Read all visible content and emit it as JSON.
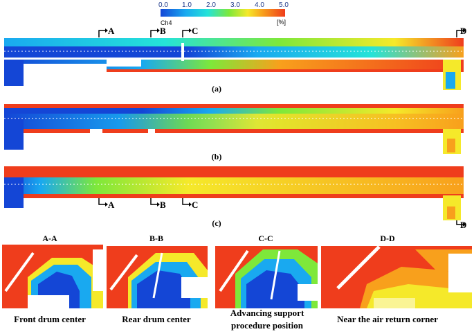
{
  "colorbar": {
    "ticks": [
      "0.0",
      "1.0",
      "2.0",
      "3.0",
      "4.0",
      "5.0"
    ],
    "gas_label": "Ch4",
    "unit_label": "[%]",
    "colors": [
      "#1446d6",
      "#19a9f0",
      "#25e3d8",
      "#7ee83a",
      "#f5e92a",
      "#f8a01c",
      "#ef3d1c"
    ]
  },
  "panels": [
    {
      "label": "(a)"
    },
    {
      "label": "(b)"
    },
    {
      "label": "(c)"
    }
  ],
  "section_markers": {
    "top": [
      "A",
      "B",
      "C",
      "D"
    ],
    "bottom": [
      "A",
      "B",
      "C",
      "D"
    ]
  },
  "cross_sections": [
    {
      "title": "A-A",
      "caption": "Front drum center"
    },
    {
      "title": "B-B",
      "caption": "Rear drum center"
    },
    {
      "title": "C-C",
      "caption_line1": "Advancing support",
      "caption_line2": "procedure position"
    },
    {
      "title": "D-D",
      "caption": "Near the air return corner"
    }
  ]
}
